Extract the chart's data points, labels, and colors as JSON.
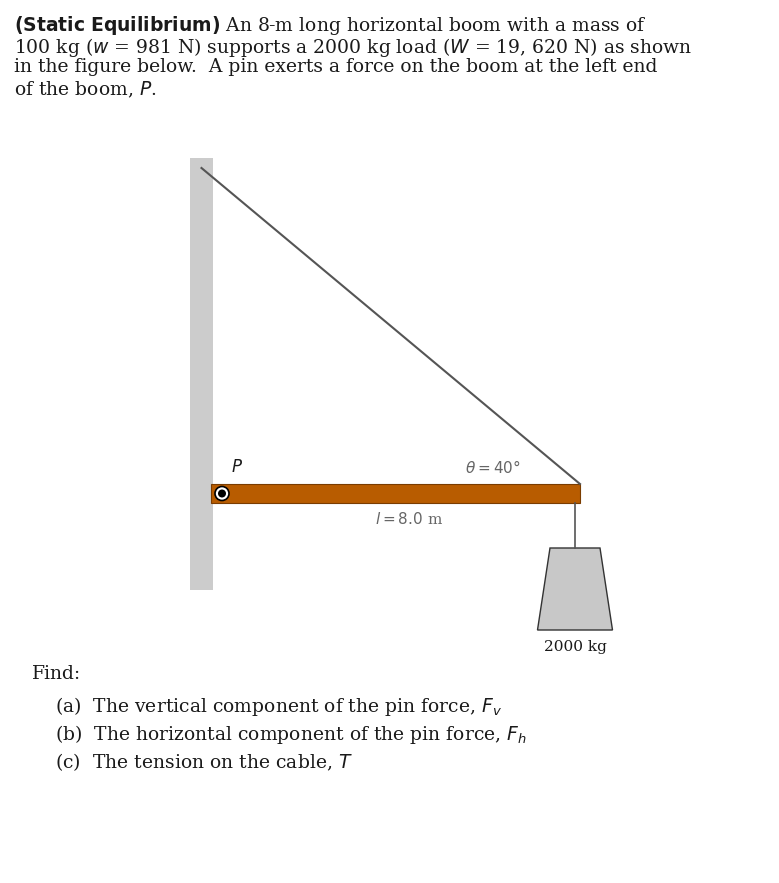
{
  "bg_color": "#ffffff",
  "text_color": "#1a1a1a",
  "wall_color": "#cccccc",
  "boom_color": "#b85c00",
  "boom_edge_color": "#7a3c00",
  "cable_color": "#555555",
  "load_color": "#c8c8c8",
  "load_edge_color": "#333333",
  "fontsize_text": 13.5,
  "fontsize_diagram": 12.0,
  "top_paragraph": [
    "(\\mathbf{Static\\ Equilibrium})",
    " An 8-m long horizontal boom with a mass of",
    "100 kg ($w$ = 981 N) supports a 2000 kg load ($W$ = 19, 620 N) as shown",
    "in the figure below.  A pin exerts a force on the boom at the left end",
    "of the boom, $P$."
  ],
  "find_label": "Find:",
  "items": [
    "(a)  The vertical component of the pin force, $F_v$",
    "(b)  The horizontal component of the pin force, $F_h$",
    "(c)  The tension on the cable, $T$"
  ]
}
